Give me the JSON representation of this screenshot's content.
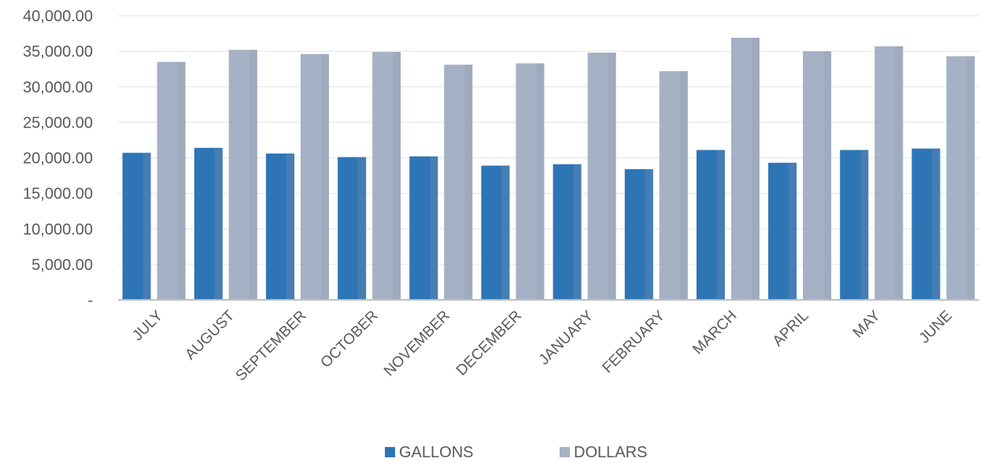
{
  "chart_data": {
    "type": "bar",
    "categories": [
      "JULY",
      "AUGUST",
      "SEPTEMBER",
      "OCTOBER",
      "NOVEMBER",
      "DECEMBER",
      "JANUARY",
      "FEBRUARY",
      "MARCH",
      "APRIL",
      "MAY",
      "JUNE"
    ],
    "series": [
      {
        "name": "GALLONS",
        "color": "#2e75b6",
        "values": [
          20700,
          21400,
          20600,
          20100,
          20200,
          18900,
          19100,
          18400,
          21100,
          19300,
          21100,
          21300
        ]
      },
      {
        "name": "DOLLARS",
        "color": "#a5b1c4",
        "values": [
          33500,
          35200,
          34600,
          34900,
          33100,
          33300,
          34800,
          32200,
          36900,
          35000,
          35700,
          34300
        ]
      }
    ],
    "yticks": [
      "-",
      "5,000.00",
      "10,000.00",
      "15,000.00",
      "20,000.00",
      "25,000.00",
      "30,000.00",
      "35,000.00",
      "40,000.00"
    ],
    "ylim": [
      0,
      40000
    ],
    "ystep": 5000,
    "grid": true,
    "legend_position": "bottom",
    "title": "",
    "xlabel": "",
    "ylabel": ""
  }
}
